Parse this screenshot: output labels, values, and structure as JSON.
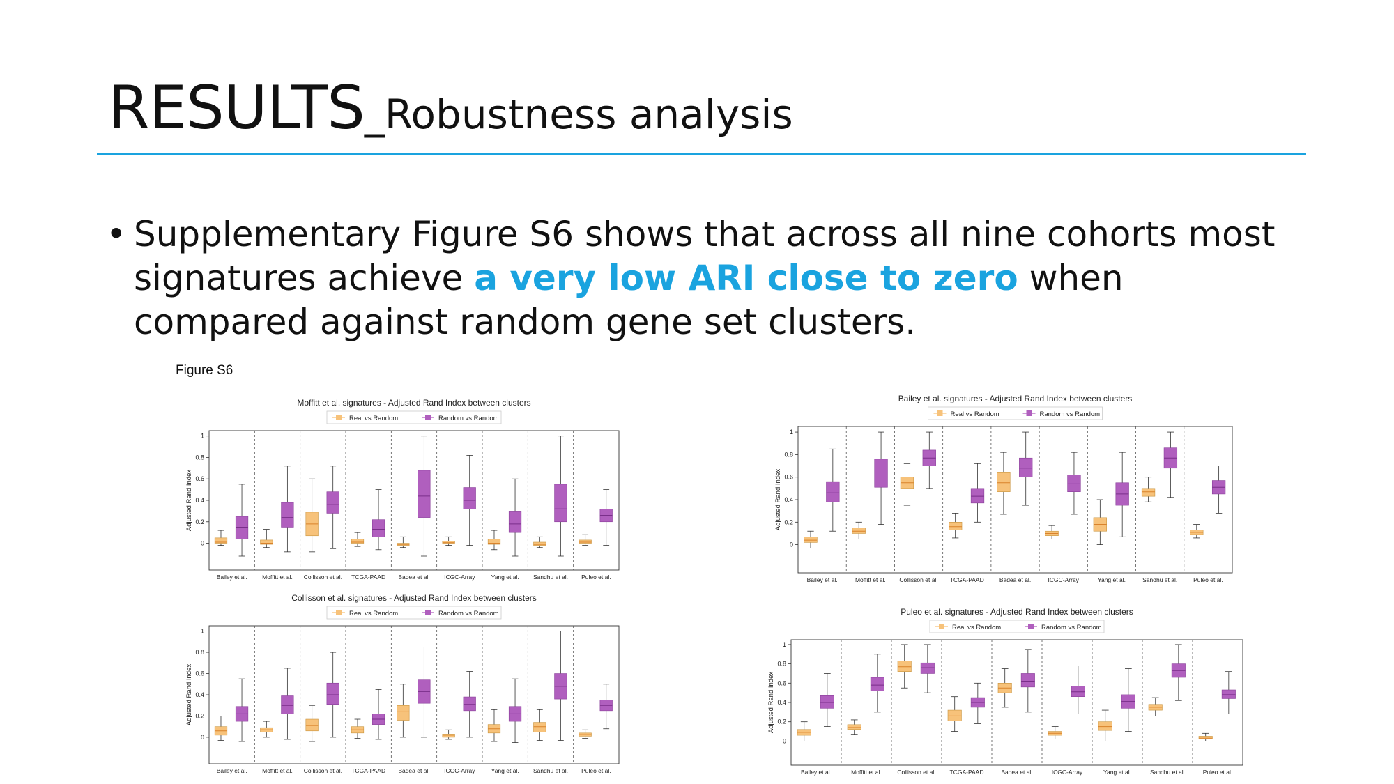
{
  "slide": {
    "title_main": "RESULTS",
    "title_sub": "_Robustness analysis",
    "bullet_before": "Supplementary Figure S6 shows that across all nine cohorts most signatures achieve ",
    "bullet_highlight": "a very low ARI close to zero",
    "bullet_after": " when compared against random gene set clusters.",
    "figure_label": "Figure S6",
    "accent_color": "#1aa3df"
  },
  "chart_data": [
    {
      "type": "box",
      "title": "Moffitt et al. signatures - Adjusted Rand Index between clusters",
      "xlabel": "",
      "ylabel": "Adjusted Rand Index",
      "ylim": [
        -0.25,
        1.05
      ],
      "yticks": [
        0,
        0.2,
        0.4,
        0.6,
        0.8,
        1
      ],
      "legend": "top-center",
      "categories": [
        "Bailey et al.",
        "Moffitt et al.",
        "Collisson et al.",
        "TCGA-PAAD",
        "Badea et al.",
        "ICGC-Array",
        "Yang et al.",
        "Sandhu et al.",
        "Puleo et al."
      ],
      "series": [
        {
          "name": "Real vs Random",
          "color": "#f7c27a",
          "boxes": [
            {
              "q1": 0.0,
              "med": 0.01,
              "q3": 0.05,
              "lo": -0.02,
              "hi": 0.12
            },
            {
              "q1": -0.01,
              "med": 0.0,
              "q3": 0.03,
              "lo": -0.04,
              "hi": 0.13
            },
            {
              "q1": 0.07,
              "med": 0.18,
              "q3": 0.29,
              "lo": -0.08,
              "hi": 0.6
            },
            {
              "q1": 0.0,
              "med": 0.01,
              "q3": 0.04,
              "lo": -0.03,
              "hi": 0.1
            },
            {
              "q1": -0.02,
              "med": -0.01,
              "q3": 0.0,
              "lo": -0.04,
              "hi": 0.06
            },
            {
              "q1": 0.0,
              "med": 0.005,
              "q3": 0.02,
              "lo": -0.02,
              "hi": 0.06
            },
            {
              "q1": -0.01,
              "med": 0.0,
              "q3": 0.04,
              "lo": -0.06,
              "hi": 0.12
            },
            {
              "q1": -0.02,
              "med": -0.01,
              "q3": 0.01,
              "lo": -0.04,
              "hi": 0.06
            },
            {
              "q1": 0.0,
              "med": 0.01,
              "q3": 0.03,
              "lo": -0.02,
              "hi": 0.08
            }
          ]
        },
        {
          "name": "Random vs Random",
          "color": "#b05fbe",
          "boxes": [
            {
              "q1": 0.04,
              "med": 0.15,
              "q3": 0.25,
              "lo": -0.12,
              "hi": 0.55
            },
            {
              "q1": 0.15,
              "med": 0.24,
              "q3": 0.38,
              "lo": -0.08,
              "hi": 0.72
            },
            {
              "q1": 0.28,
              "med": 0.36,
              "q3": 0.48,
              "lo": -0.05,
              "hi": 0.72
            },
            {
              "q1": 0.06,
              "med": 0.13,
              "q3": 0.22,
              "lo": -0.06,
              "hi": 0.5
            },
            {
              "q1": 0.24,
              "med": 0.44,
              "q3": 0.68,
              "lo": -0.12,
              "hi": 1.0
            },
            {
              "q1": 0.32,
              "med": 0.4,
              "q3": 0.52,
              "lo": -0.02,
              "hi": 0.82
            },
            {
              "q1": 0.1,
              "med": 0.18,
              "q3": 0.3,
              "lo": -0.12,
              "hi": 0.6
            },
            {
              "q1": 0.2,
              "med": 0.32,
              "q3": 0.55,
              "lo": -0.12,
              "hi": 1.0
            },
            {
              "q1": 0.2,
              "med": 0.26,
              "q3": 0.32,
              "lo": -0.02,
              "hi": 0.5
            }
          ]
        }
      ]
    },
    {
      "type": "box",
      "title": "Bailey et al. signatures - Adjusted Rand Index between clusters",
      "xlabel": "",
      "ylabel": "Adjusted Rand Index",
      "ylim": [
        -0.25,
        1.05
      ],
      "yticks": [
        0,
        0.2,
        0.4,
        0.6,
        0.8,
        1
      ],
      "legend": "top-center",
      "categories": [
        "Bailey et al.",
        "Moffitt et al.",
        "Collisson et al.",
        "TCGA-PAAD",
        "Badea et al.",
        "ICGC-Array",
        "Yang et al.",
        "Sandhu et al.",
        "Puleo et al."
      ],
      "series": [
        {
          "name": "Real vs Random",
          "color": "#f7c27a",
          "boxes": [
            {
              "q1": 0.02,
              "med": 0.04,
              "q3": 0.07,
              "lo": -0.03,
              "hi": 0.12
            },
            {
              "q1": 0.1,
              "med": 0.12,
              "q3": 0.15,
              "lo": 0.05,
              "hi": 0.2
            },
            {
              "q1": 0.5,
              "med": 0.55,
              "q3": 0.6,
              "lo": 0.35,
              "hi": 0.72
            },
            {
              "q1": 0.13,
              "med": 0.16,
              "q3": 0.2,
              "lo": 0.06,
              "hi": 0.28
            },
            {
              "q1": 0.47,
              "med": 0.55,
              "q3": 0.64,
              "lo": 0.27,
              "hi": 0.82
            },
            {
              "q1": 0.08,
              "med": 0.1,
              "q3": 0.12,
              "lo": 0.05,
              "hi": 0.17
            },
            {
              "q1": 0.12,
              "med": 0.18,
              "q3": 0.24,
              "lo": 0.0,
              "hi": 0.4
            },
            {
              "q1": 0.43,
              "med": 0.47,
              "q3": 0.5,
              "lo": 0.38,
              "hi": 0.6
            },
            {
              "q1": 0.09,
              "med": 0.11,
              "q3": 0.13,
              "lo": 0.06,
              "hi": 0.18
            }
          ]
        },
        {
          "name": "Random vs Random",
          "color": "#b05fbe",
          "boxes": [
            {
              "q1": 0.38,
              "med": 0.46,
              "q3": 0.56,
              "lo": 0.12,
              "hi": 0.85
            },
            {
              "q1": 0.51,
              "med": 0.62,
              "q3": 0.76,
              "lo": 0.18,
              "hi": 1.0
            },
            {
              "q1": 0.7,
              "med": 0.77,
              "q3": 0.84,
              "lo": 0.5,
              "hi": 1.0
            },
            {
              "q1": 0.37,
              "med": 0.43,
              "q3": 0.5,
              "lo": 0.2,
              "hi": 0.72
            },
            {
              "q1": 0.6,
              "med": 0.68,
              "q3": 0.77,
              "lo": 0.35,
              "hi": 1.0
            },
            {
              "q1": 0.47,
              "med": 0.54,
              "q3": 0.62,
              "lo": 0.27,
              "hi": 0.82
            },
            {
              "q1": 0.35,
              "med": 0.45,
              "q3": 0.55,
              "lo": 0.07,
              "hi": 0.82
            },
            {
              "q1": 0.68,
              "med": 0.77,
              "q3": 0.86,
              "lo": 0.42,
              "hi": 1.0
            },
            {
              "q1": 0.45,
              "med": 0.51,
              "q3": 0.57,
              "lo": 0.28,
              "hi": 0.7
            }
          ]
        }
      ]
    },
    {
      "type": "box",
      "title": "Collisson et al. signatures - Adjusted Rand Index between clusters",
      "xlabel": "",
      "ylabel": "Adjusted Rand Index",
      "ylim": [
        -0.25,
        1.05
      ],
      "yticks": [
        0,
        0.2,
        0.4,
        0.6,
        0.8,
        1
      ],
      "legend": "top-center",
      "categories": [
        "Bailey et al.",
        "Moffitt et al.",
        "Collisson et al.",
        "TCGA-PAAD",
        "Badea et al.",
        "ICGC-Array",
        "Yang et al.",
        "Sandhu et al.",
        "Puleo et al."
      ],
      "series": [
        {
          "name": "Real vs Random",
          "color": "#f7c27a",
          "boxes": [
            {
              "q1": 0.02,
              "med": 0.06,
              "q3": 0.1,
              "lo": -0.03,
              "hi": 0.2
            },
            {
              "q1": 0.05,
              "med": 0.07,
              "q3": 0.09,
              "lo": 0.0,
              "hi": 0.15
            },
            {
              "q1": 0.06,
              "med": 0.11,
              "q3": 0.17,
              "lo": -0.04,
              "hi": 0.3
            },
            {
              "q1": 0.04,
              "med": 0.07,
              "q3": 0.1,
              "lo": -0.01,
              "hi": 0.17
            },
            {
              "q1": 0.16,
              "med": 0.24,
              "q3": 0.3,
              "lo": 0.0,
              "hi": 0.5
            },
            {
              "q1": 0.0,
              "med": 0.02,
              "q3": 0.03,
              "lo": -0.02,
              "hi": 0.07
            },
            {
              "q1": 0.04,
              "med": 0.08,
              "q3": 0.12,
              "lo": -0.04,
              "hi": 0.26
            },
            {
              "q1": 0.05,
              "med": 0.1,
              "q3": 0.14,
              "lo": -0.03,
              "hi": 0.26
            },
            {
              "q1": 0.01,
              "med": 0.025,
              "q3": 0.04,
              "lo": -0.01,
              "hi": 0.07
            }
          ]
        },
        {
          "name": "Random vs Random",
          "color": "#b05fbe",
          "boxes": [
            {
              "q1": 0.15,
              "med": 0.22,
              "q3": 0.29,
              "lo": -0.04,
              "hi": 0.55
            },
            {
              "q1": 0.22,
              "med": 0.3,
              "q3": 0.39,
              "lo": -0.02,
              "hi": 0.65
            },
            {
              "q1": 0.31,
              "med": 0.4,
              "q3": 0.51,
              "lo": 0.0,
              "hi": 0.8
            },
            {
              "q1": 0.12,
              "med": 0.17,
              "q3": 0.22,
              "lo": -0.02,
              "hi": 0.45
            },
            {
              "q1": 0.32,
              "med": 0.43,
              "q3": 0.54,
              "lo": 0.0,
              "hi": 0.85
            },
            {
              "q1": 0.25,
              "med": 0.31,
              "q3": 0.38,
              "lo": 0.0,
              "hi": 0.62
            },
            {
              "q1": 0.15,
              "med": 0.22,
              "q3": 0.29,
              "lo": -0.05,
              "hi": 0.55
            },
            {
              "q1": 0.36,
              "med": 0.48,
              "q3": 0.6,
              "lo": -0.03,
              "hi": 1.0
            },
            {
              "q1": 0.25,
              "med": 0.3,
              "q3": 0.35,
              "lo": 0.08,
              "hi": 0.5
            }
          ]
        }
      ]
    },
    {
      "type": "box",
      "title": "Puleo et al. signatures - Adjusted Rand Index between clusters",
      "xlabel": "",
      "ylabel": "Adjusted Rand Index",
      "ylim": [
        -0.25,
        1.05
      ],
      "yticks": [
        0,
        0.2,
        0.4,
        0.6,
        0.8,
        1
      ],
      "legend": "top-center",
      "categories": [
        "Bailey et al.",
        "Moffitt et al.",
        "Collisson et al.",
        "TCGA-PAAD",
        "Badea et al.",
        "ICGC-Array",
        "Yang et al.",
        "Sandhu et al.",
        "Puleo et al."
      ],
      "series": [
        {
          "name": "Real vs Random",
          "color": "#f7c27a",
          "boxes": [
            {
              "q1": 0.06,
              "med": 0.09,
              "q3": 0.12,
              "lo": 0.0,
              "hi": 0.2
            },
            {
              "q1": 0.12,
              "med": 0.14,
              "q3": 0.17,
              "lo": 0.07,
              "hi": 0.22
            },
            {
              "q1": 0.72,
              "med": 0.77,
              "q3": 0.83,
              "lo": 0.55,
              "hi": 1.0
            },
            {
              "q1": 0.21,
              "med": 0.26,
              "q3": 0.32,
              "lo": 0.1,
              "hi": 0.46
            },
            {
              "q1": 0.5,
              "med": 0.55,
              "q3": 0.6,
              "lo": 0.35,
              "hi": 0.75
            },
            {
              "q1": 0.06,
              "med": 0.08,
              "q3": 0.1,
              "lo": 0.02,
              "hi": 0.15
            },
            {
              "q1": 0.11,
              "med": 0.15,
              "q3": 0.2,
              "lo": 0.0,
              "hi": 0.32
            },
            {
              "q1": 0.32,
              "med": 0.35,
              "q3": 0.38,
              "lo": 0.26,
              "hi": 0.45
            },
            {
              "q1": 0.02,
              "med": 0.03,
              "q3": 0.05,
              "lo": 0.0,
              "hi": 0.08
            }
          ]
        },
        {
          "name": "Random vs Random",
          "color": "#b05fbe",
          "boxes": [
            {
              "q1": 0.34,
              "med": 0.4,
              "q3": 0.47,
              "lo": 0.15,
              "hi": 0.7
            },
            {
              "q1": 0.52,
              "med": 0.58,
              "q3": 0.66,
              "lo": 0.3,
              "hi": 0.9
            },
            {
              "q1": 0.7,
              "med": 0.76,
              "q3": 0.81,
              "lo": 0.5,
              "hi": 1.0
            },
            {
              "q1": 0.35,
              "med": 0.4,
              "q3": 0.45,
              "lo": 0.18,
              "hi": 0.6
            },
            {
              "q1": 0.56,
              "med": 0.62,
              "q3": 0.7,
              "lo": 0.3,
              "hi": 0.95
            },
            {
              "q1": 0.46,
              "med": 0.51,
              "q3": 0.57,
              "lo": 0.28,
              "hi": 0.78
            },
            {
              "q1": 0.34,
              "med": 0.41,
              "q3": 0.48,
              "lo": 0.1,
              "hi": 0.75
            },
            {
              "q1": 0.66,
              "med": 0.73,
              "q3": 0.8,
              "lo": 0.42,
              "hi": 1.0
            },
            {
              "q1": 0.44,
              "med": 0.48,
              "q3": 0.53,
              "lo": 0.28,
              "hi": 0.72
            }
          ]
        }
      ]
    }
  ]
}
